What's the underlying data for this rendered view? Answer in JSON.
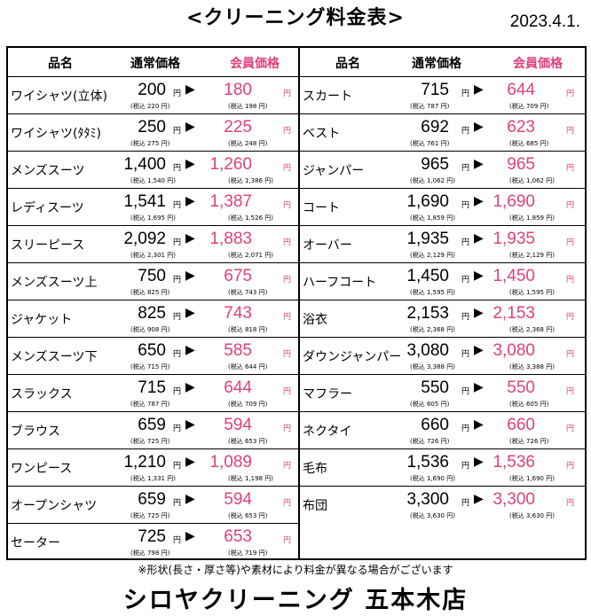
{
  "title": "<クリーニング料金表>",
  "date": "2023.4.1.",
  "headers": {
    "name": "品名",
    "normal": "通常価格",
    "member": "会員価格"
  },
  "yen": "円",
  "tax_prefix": "(税込",
  "tax_suffix": "円)",
  "colors": {
    "member": "#e0407a"
  },
  "left_items": [
    {
      "name": "ワイシャツ(立体)",
      "normal": "200",
      "normal_tax": "220",
      "member": "180",
      "member_tax": "198"
    },
    {
      "name": "ワイシャツ(ﾀﾀﾐ)",
      "normal": "250",
      "normal_tax": "275",
      "member": "225",
      "member_tax": "248"
    },
    {
      "name": "メンズスーツ",
      "normal": "1,400",
      "normal_tax": "1,540",
      "member": "1,260",
      "member_tax": "1,386"
    },
    {
      "name": "レディスーツ",
      "normal": "1,541",
      "normal_tax": "1,695",
      "member": "1,387",
      "member_tax": "1,526"
    },
    {
      "name": "スリーピース",
      "normal": "2,092",
      "normal_tax": "2,301",
      "member": "1,883",
      "member_tax": "2,071"
    },
    {
      "name": "メンズスーツ上",
      "normal": "750",
      "normal_tax": "825",
      "member": "675",
      "member_tax": "743"
    },
    {
      "name": "ジャケット",
      "normal": "825",
      "normal_tax": "908",
      "member": "743",
      "member_tax": "818"
    },
    {
      "name": "メンズスーツ下",
      "normal": "650",
      "normal_tax": "715",
      "member": "585",
      "member_tax": "644"
    },
    {
      "name": "スラックス",
      "normal": "715",
      "normal_tax": "787",
      "member": "644",
      "member_tax": "709"
    },
    {
      "name": "ブラウス",
      "normal": "659",
      "normal_tax": "725",
      "member": "594",
      "member_tax": "653"
    },
    {
      "name": "ワンピース",
      "normal": "1,210",
      "normal_tax": "1,331",
      "member": "1,089",
      "member_tax": "1,198"
    },
    {
      "name": "オープンシャツ",
      "normal": "659",
      "normal_tax": "725",
      "member": "594",
      "member_tax": "653"
    },
    {
      "name": "セーター",
      "normal": "725",
      "normal_tax": "798",
      "member": "653",
      "member_tax": "719"
    }
  ],
  "right_items": [
    {
      "name": "スカート",
      "normal": "715",
      "normal_tax": "787",
      "member": "644",
      "member_tax": "709"
    },
    {
      "name": "ベスト",
      "normal": "692",
      "normal_tax": "761",
      "member": "623",
      "member_tax": "685"
    },
    {
      "name": "ジャンパー",
      "normal": "965",
      "normal_tax": "1,062",
      "member": "965",
      "member_tax": "1,062"
    },
    {
      "name": "コート",
      "normal": "1,690",
      "normal_tax": "1,859",
      "member": "1,690",
      "member_tax": "1,859"
    },
    {
      "name": "オーバー",
      "normal": "1,935",
      "normal_tax": "2,129",
      "member": "1,935",
      "member_tax": "2,129"
    },
    {
      "name": "ハーフコート",
      "normal": "1,450",
      "normal_tax": "1,595",
      "member": "1,450",
      "member_tax": "1,595"
    },
    {
      "name": "浴衣",
      "normal": "2,153",
      "normal_tax": "2,368",
      "member": "2,153",
      "member_tax": "2,368"
    },
    {
      "name": "ダウンジャンパー",
      "normal": "3,080",
      "normal_tax": "3,388",
      "member": "3,080",
      "member_tax": "3,388"
    },
    {
      "name": "マフラー",
      "normal": "550",
      "normal_tax": "605",
      "member": "550",
      "member_tax": "605"
    },
    {
      "name": "ネクタイ",
      "normal": "660",
      "normal_tax": "726",
      "member": "660",
      "member_tax": "726"
    },
    {
      "name": "毛布",
      "normal": "1,536",
      "normal_tax": "1,690",
      "member": "1,536",
      "member_tax": "1,690"
    },
    {
      "name": "布団",
      "normal": "3,300",
      "normal_tax": "3,630",
      "member": "3,300",
      "member_tax": "3,630"
    }
  ],
  "note": "※形状(長さ・厚さ等)や素材により料金が異なる場合がございます",
  "store": "シロヤクリーニング 五本木店"
}
